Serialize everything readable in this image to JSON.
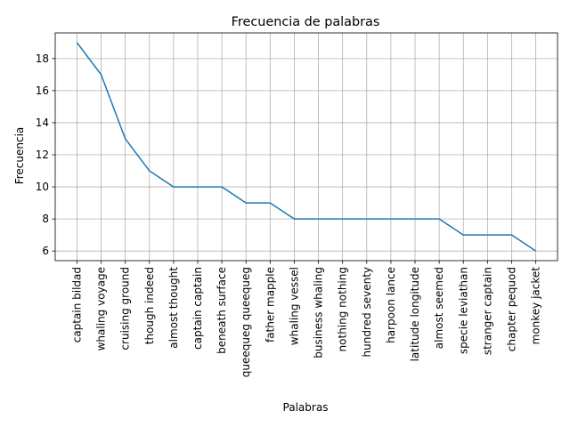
{
  "chart_data": {
    "type": "line",
    "title": "Frecuencia de palabras",
    "xlabel": "Palabras",
    "ylabel": "Frecuencia",
    "grid": true,
    "categories": [
      "captain bildad",
      "whaling voyage",
      "cruising ground",
      "though indeed",
      "almost thought",
      "captain captain",
      "beneath surface",
      "queequeg queequeg",
      "father mapple",
      "whaling vessel",
      "business whaling",
      "nothing nothing",
      "hundred seventy",
      "harpoon lance",
      "latitude longitude",
      "almost seemed",
      "specie leviathan",
      "stranger captain",
      "chapter pequod",
      "monkey jacket"
    ],
    "values": [
      19,
      17,
      13,
      11,
      10,
      10,
      10,
      9,
      9,
      8,
      8,
      8,
      8,
      8,
      8,
      8,
      7,
      7,
      7,
      6
    ],
    "yticks": [
      6,
      8,
      10,
      12,
      14,
      16,
      18
    ],
    "ylim": [
      5.4,
      19.6
    ],
    "line_color": "#1f77b4"
  }
}
